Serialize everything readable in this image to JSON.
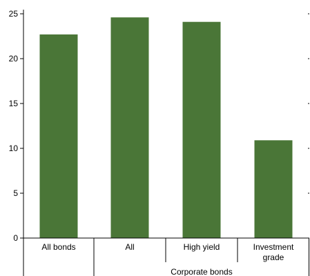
{
  "chart_data": {
    "type": "bar",
    "categories": [
      "All bonds",
      "All",
      "High yield",
      "Investment grade"
    ],
    "category_lines": [
      [
        "All bonds"
      ],
      [
        "All"
      ],
      [
        "High yield"
      ],
      [
        "Investment",
        "grade"
      ]
    ],
    "group_label": "Corporate bonds",
    "values": [
      22.7,
      24.6,
      24.1,
      10.9
    ],
    "yticks": [
      0,
      5,
      10,
      15,
      20,
      25
    ],
    "ylim": [
      0,
      25
    ],
    "bar_color": "#4a7637",
    "axis_color": "#000000",
    "grid": false
  }
}
